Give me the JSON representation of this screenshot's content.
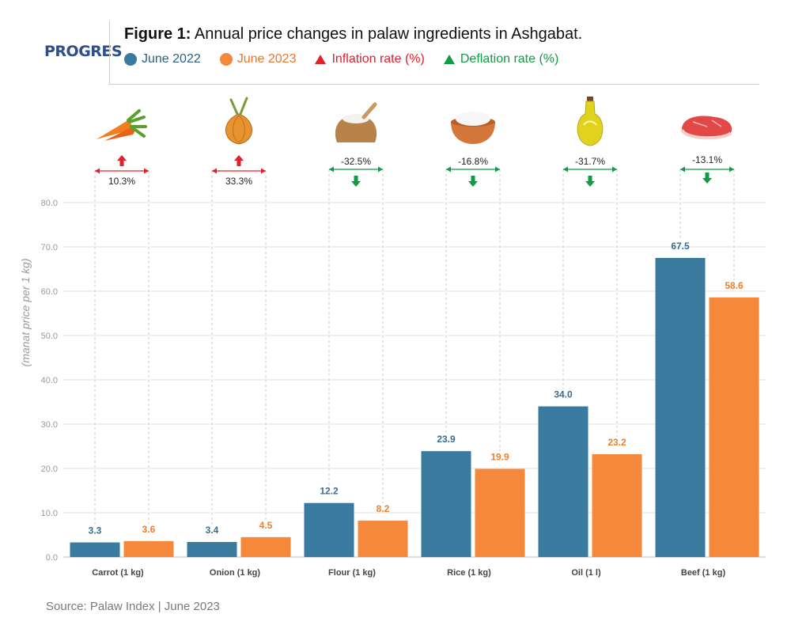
{
  "header": {
    "logo_text": "PROGRES",
    "title_bold": "Figure 1:",
    "title_rest": " Annual price changes in palaw ingredients in Ashgabat.",
    "legend": [
      {
        "label": "June 2022",
        "color": "#3a7a9e",
        "marker": "circle"
      },
      {
        "label": "June 2023",
        "color": "#f5883a",
        "marker": "circle"
      },
      {
        "label": "Inflation rate (%)",
        "color": "#e0202a",
        "marker": "triangle"
      },
      {
        "label": "Deflation rate (%)",
        "color": "#139a45",
        "marker": "triangle"
      }
    ]
  },
  "footer": {
    "source": "Source: Palaw Index  |  June 2023"
  },
  "colors": {
    "june2022": "#3a7a9e",
    "june2023": "#f5883a",
    "inflation": "#e0202a",
    "deflation": "#139a45"
  },
  "chart_data": {
    "type": "bar",
    "title": "Annual price changes in palaw ingredients in Ashgabat.",
    "ylabel": "(manat price per 1 kg)",
    "xlabel": "",
    "ylim": [
      0,
      80
    ],
    "yticks": [
      "0.0",
      "10.0",
      "20.0",
      "30.0",
      "40.0",
      "50.0",
      "60.0",
      "70.0",
      "80.0"
    ],
    "grid": true,
    "legend_position": "top",
    "categories": [
      "Carrot (1 kg)",
      "Onion (1 kg)",
      "Flour (1 kg)",
      "Rice (1 kg)",
      "Oil (1 l)",
      "Beef (1 kg)"
    ],
    "icons": [
      "carrot-icon",
      "onion-icon",
      "flour-sack-icon",
      "rice-bowl-icon",
      "oil-bottle-icon",
      "beef-icon"
    ],
    "series": [
      {
        "name": "June 2022",
        "values": [
          3.3,
          3.4,
          12.2,
          23.9,
          34.0,
          67.5
        ],
        "labels": [
          "3.3",
          "3.4",
          "12.2",
          "23.9",
          "34.0",
          "67.5"
        ]
      },
      {
        "name": "June 2023",
        "values": [
          3.6,
          4.5,
          8.2,
          19.9,
          23.2,
          58.6
        ],
        "labels": [
          "3.6",
          "4.5",
          "8.2",
          "19.9",
          "23.2",
          "58.6"
        ]
      }
    ],
    "rates": [
      {
        "label": "10.3%",
        "direction": "up"
      },
      {
        "label": "33.3%",
        "direction": "up"
      },
      {
        "label": "-32.5%",
        "direction": "down"
      },
      {
        "label": "-16.8%",
        "direction": "down"
      },
      {
        "label": "-31.7%",
        "direction": "down"
      },
      {
        "label": "-13.1%",
        "direction": "down"
      }
    ]
  }
}
